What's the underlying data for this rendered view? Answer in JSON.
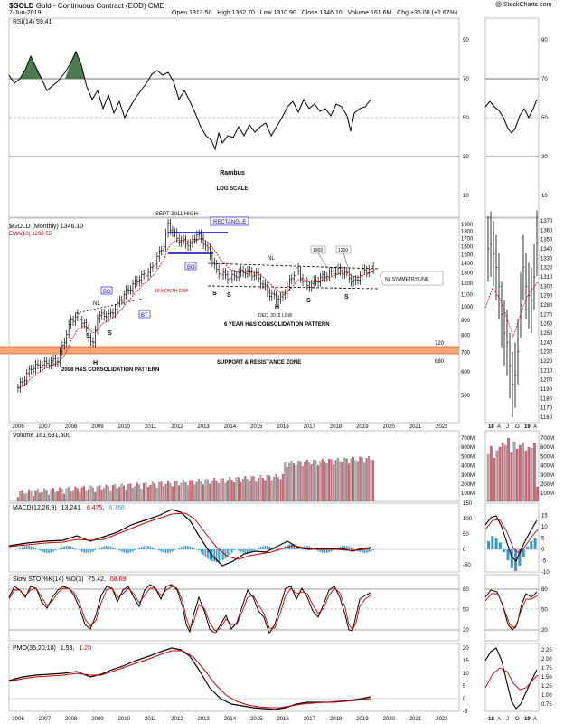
{
  "header": {
    "symbol": "$GOLD",
    "name": "Gold - Continuous Contract (EOD)",
    "exchange": "CME",
    "date": "7-Jun-2019",
    "open": "Open 1312.50",
    "high": "High 1352.70",
    "low": "Low 1310.90",
    "close": "Close 1346.10",
    "volume": "Volume 161.6M",
    "change": "Chg +35.00 (+2.67%)",
    "credit": "@ StockCharts.com"
  },
  "colors": {
    "price_up": "#000000",
    "price_down": "#000000",
    "ema": "#cc0000",
    "rsi_fill": "#4f7a4f",
    "volume_up": "#aaaaaa",
    "volume_down": "#e06070",
    "macd_hist": "#3399cc",
    "zone": "#f4a677",
    "annotation_blue": "#0000cc"
  },
  "rsi_panel": {
    "legend": "RSI(14) 59.41",
    "levels": [
      90,
      70,
      50,
      30,
      10
    ],
    "overbought": 70,
    "oversold": 30,
    "center_note_1": "Rambus",
    "center_note_2": "LOG SCALE"
  },
  "price_panel": {
    "legend": "$GOLD (Monthly) 1346.10",
    "ema_legend": "EMA(10) 1296.55",
    "right_ticks": [
      1900,
      1800,
      1700,
      1600,
      1500,
      1400,
      1300,
      1200,
      1100,
      1000,
      900,
      800,
      700,
      600,
      500
    ],
    "inset_ticks": [
      1370,
      1360,
      1350,
      1340,
      1330,
      1320,
      1310,
      1300,
      1290,
      1280,
      1270,
      1260,
      1250,
      1240,
      1230,
      1220,
      1210,
      1200,
      1190,
      1180,
      1170,
      1160
    ],
    "zone_top": "720",
    "zone_bottom": "680",
    "annotations": {
      "sept2011": "SEPT 2011 HIGH",
      "rectangle": "RECTANGLE",
      "bo1": "BO",
      "bo2": "BO",
      "bt": "BT",
      "nl1": "NL",
      "nl2": "NL",
      "ema10": "10 MONTH EMA",
      "s": "S",
      "h": "H",
      "dec2015": "DEC. 2015 LOW",
      "six_year": "6 YEAR H&S CONSOLIDATION PATTERN",
      "v1365": "1365",
      "v1350": "1350",
      "nl_sym": "NL SYMMETRY LINE",
      "support": "SUPPORT & RESISTANCE ZONE",
      "h2008": "2008 H&S CONSOLIDATION PATTERN"
    }
  },
  "axis": {
    "years": [
      "2006",
      "2007",
      "2008",
      "2009",
      "2010",
      "2011",
      "2012",
      "2013",
      "2014",
      "2015",
      "2016",
      "2017",
      "2018",
      "2019",
      "2020",
      "2021",
      "2022"
    ],
    "inset_labels": [
      "18",
      "A",
      "J",
      "O",
      "19",
      "A"
    ]
  },
  "volume_panel": {
    "legend": "Volume 161,631,600",
    "ticks": [
      "700M",
      "600M",
      "500M",
      "400M",
      "300M",
      "200M",
      "100M"
    ]
  },
  "macd_panel": {
    "legend_label": "MACD(12,26,9)",
    "legend_macd": "13.241",
    "legend_signal": "6.475",
    "legend_hist": "6.766",
    "ticks": [
      150,
      100,
      50,
      0,
      -50
    ],
    "inset_ticks": [
      15,
      10,
      5,
      0,
      -5,
      -10
    ]
  },
  "sto_panel": {
    "legend_label": "Slow STO %K(14) %D(3)",
    "legend_k": "75.42",
    "legend_d": "68.69",
    "ticks": [
      80,
      50,
      20
    ]
  },
  "pmo_panel": {
    "legend_label": "PMO(35,20,10)",
    "legend_pmo": "1.53",
    "legend_signal": "1.20",
    "ticks": [
      20,
      15,
      10,
      5,
      0,
      -5
    ],
    "inset_ticks": [
      2.25,
      2.0,
      1.75,
      1.5,
      1.25,
      1.0,
      0.75
    ]
  },
  "chart_data": {
    "type": "line",
    "title": "$GOLD Gold - Continuous Contract (EOD) CME",
    "x_range": [
      2006,
      2022
    ],
    "ylim": [
      400,
      1950
    ],
    "y_scale": "log",
    "monthly_close": {
      "x": [
        2006.0,
        2006.5,
        2007.0,
        2007.5,
        2008.0,
        2008.25,
        2008.5,
        2008.83,
        2009.0,
        2009.5,
        2010.0,
        2010.5,
        2011.0,
        2011.5,
        2011.67,
        2012.0,
        2012.5,
        2012.75,
        2013.0,
        2013.3,
        2013.5,
        2014.0,
        2014.5,
        2015.0,
        2015.5,
        2015.92,
        2016.5,
        2016.9,
        2017.5,
        2018.0,
        2018.33,
        2018.7,
        2019.0,
        2019.42
      ],
      "values": [
        530,
        620,
        640,
        660,
        900,
        930,
        870,
        740,
        930,
        940,
        1100,
        1230,
        1330,
        1620,
        1900,
        1700,
        1620,
        1770,
        1660,
        1470,
        1320,
        1250,
        1320,
        1280,
        1100,
        1060,
        1340,
        1170,
        1260,
        1330,
        1310,
        1200,
        1320,
        1346
      ]
    },
    "ema10_last": 1296.55,
    "support_resistance_zone": [
      680,
      720
    ],
    "volume_last": 161631600,
    "macd": {
      "macd": 13.241,
      "signal": 6.475,
      "histogram": 6.766
    },
    "slow_sto": {
      "k": 75.42,
      "d": 68.69
    },
    "pmo": {
      "pmo": 1.53,
      "signal": 1.2
    },
    "rsi": 59.41
  }
}
